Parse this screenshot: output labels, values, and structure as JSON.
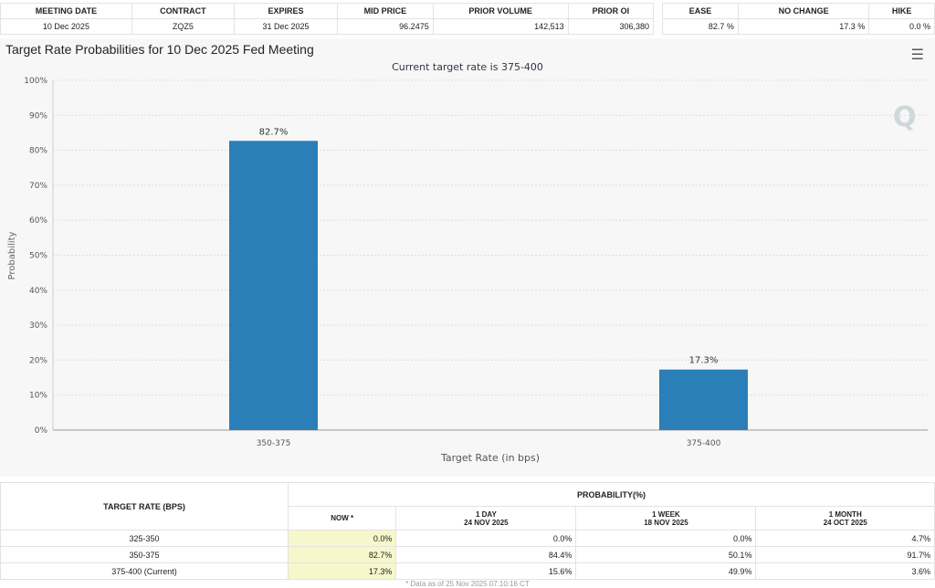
{
  "summary": {
    "headers": [
      "MEETING DATE",
      "CONTRACT",
      "EXPIRES",
      "MID PRICE",
      "PRIOR VOLUME",
      "PRIOR OI"
    ],
    "values": [
      "10 Dec 2025",
      "ZQZ5",
      "31 Dec 2025",
      "96.2475",
      "142,513",
      "306,380"
    ]
  },
  "outcome": {
    "headers": [
      "EASE",
      "NO CHANGE",
      "HIKE"
    ],
    "values": [
      "82.7 %",
      "17.3 %",
      "0.0 %"
    ]
  },
  "chart_title": "Target Rate Probabilities for 10 Dec 2025 Fed Meeting",
  "menu_icon": "hamburger-menu-icon",
  "chart_data": {
    "type": "bar",
    "subtitle": "Current target rate is 375-400",
    "xlabel": "Target Rate (in bps)",
    "ylabel": "Probability",
    "categories": [
      "350-375",
      "375-400"
    ],
    "values": [
      82.7,
      17.3
    ],
    "data_labels": [
      "82.7%",
      "17.3%"
    ],
    "ylim": [
      0,
      100
    ],
    "yticks": [
      "0%",
      "10%",
      "20%",
      "30%",
      "40%",
      "50%",
      "60%",
      "70%",
      "80%",
      "90%",
      "100%"
    ],
    "grid": true,
    "color": "#2a7fb8"
  },
  "prob_table": {
    "col0": "TARGET RATE (BPS)",
    "group": "PROBABILITY(%)",
    "cols": [
      {
        "l1": "NOW *",
        "l2": ""
      },
      {
        "l1": "1 DAY",
        "l2": "24 NOV 2025"
      },
      {
        "l1": "1 WEEK",
        "l2": "18 NOV 2025"
      },
      {
        "l1": "1 MONTH",
        "l2": "24 OCT 2025"
      }
    ],
    "rows": [
      [
        "325-350",
        "0.0%",
        "0.0%",
        "0.0%",
        "4.7%"
      ],
      [
        "350-375",
        "82.7%",
        "84.4%",
        "50.1%",
        "91.7%"
      ],
      [
        "375-400 (Current)",
        "17.3%",
        "15.6%",
        "49.9%",
        "3.6%"
      ]
    ]
  },
  "footnote": "* Data as of 25 Nov 2025 07:10:16 CT"
}
